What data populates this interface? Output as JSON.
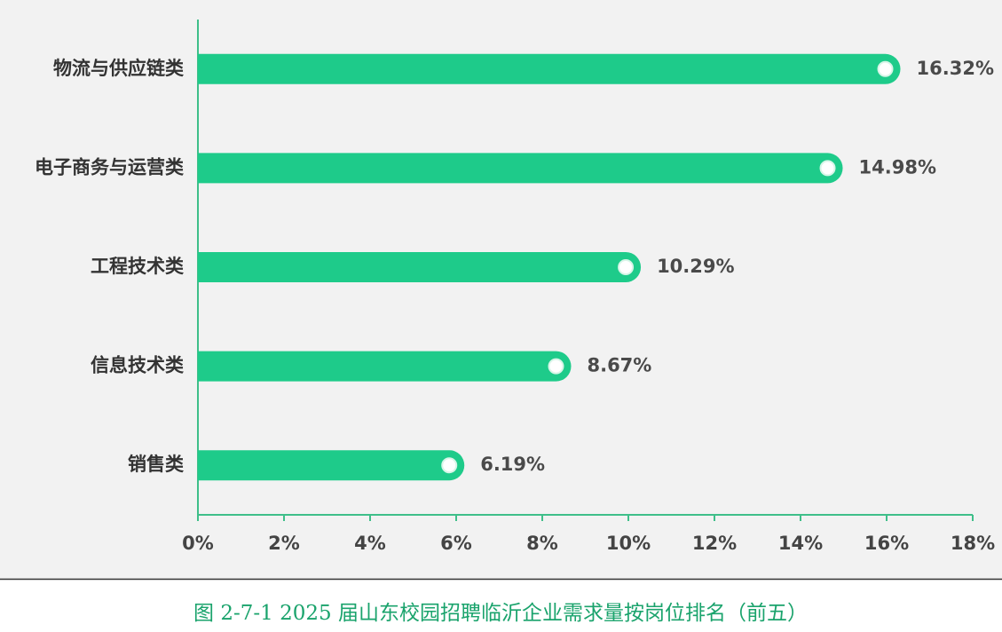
{
  "chart_data": {
    "type": "bar",
    "orientation": "horizontal",
    "title": "图 2-7-1 2025 届山东校园招聘临沂企业需求量按岗位排名（前五）",
    "categories": [
      "物流与供应链类",
      "电子商务与运营类",
      "工程技术类",
      "信息技术类",
      "销售类"
    ],
    "values": [
      16.32,
      14.98,
      10.29,
      8.67,
      6.19
    ],
    "value_labels": [
      "16.32%",
      "14.98%",
      "10.29%",
      "8.67%",
      "6.19%"
    ],
    "color": "#1ecb8a",
    "xlim": [
      0,
      18
    ],
    "xticks": [
      {
        "value": 0,
        "label": "0%"
      },
      {
        "value": 2,
        "label": "2%"
      },
      {
        "value": 4,
        "label": "4%"
      },
      {
        "value": 6,
        "label": "6%"
      },
      {
        "value": 8,
        "label": "8%"
      },
      {
        "value": 10,
        "label": "10%"
      },
      {
        "value": 12,
        "label": "12%"
      },
      {
        "value": 14,
        "label": "14%"
      },
      {
        "value": 16,
        "label": "16%"
      },
      {
        "value": 18,
        "label": "18%"
      }
    ],
    "grid": false
  }
}
